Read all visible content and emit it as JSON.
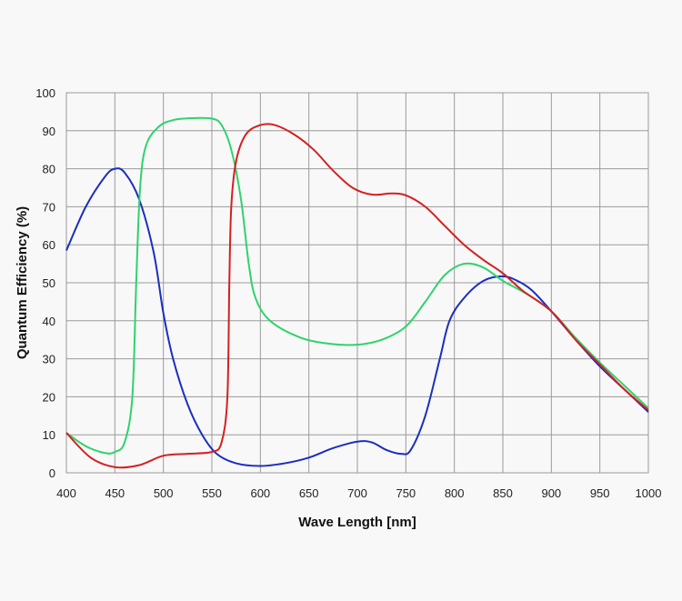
{
  "chart_data": {
    "type": "line",
    "title": "",
    "xlabel": "Wave Length [nm]",
    "ylabel": "Quantum Efficiency  (%)",
    "xlim": [
      400,
      1000
    ],
    "ylim": [
      0,
      100
    ],
    "xticks": [
      400,
      450,
      500,
      550,
      600,
      650,
      700,
      750,
      800,
      850,
      900,
      950,
      1000
    ],
    "yticks": [
      0,
      10,
      20,
      30,
      40,
      50,
      60,
      70,
      80,
      90,
      100
    ],
    "grid": true,
    "legend": "none",
    "series": [
      {
        "color": "#1a2fbf",
        "x": [
          400,
          420,
          440,
          450,
          460,
          475,
          490,
          500,
          510,
          525,
          540,
          555,
          575,
          600,
          625,
          650,
          675,
          700,
          715,
          730,
          745,
          755,
          770,
          785,
          795,
          810,
          830,
          850,
          865,
          880,
          900,
          925,
          950,
          975,
          1000
        ],
        "y": [
          58.5,
          70,
          78,
          80,
          79,
          72,
          58,
          42,
          30,
          18,
          10,
          5,
          2.5,
          1.8,
          2.5,
          4,
          6.5,
          8.2,
          8,
          6,
          5,
          6,
          15,
          30,
          40,
          46,
          50.5,
          51.7,
          50.5,
          48,
          42.5,
          35,
          28,
          22,
          16
        ]
      },
      {
        "color": "#2fd36b",
        "x": [
          400,
          420,
          440,
          450,
          460,
          468,
          472,
          476,
          482,
          495,
          510,
          530,
          550,
          560,
          570,
          580,
          588,
          595,
          610,
          640,
          670,
          700,
          725,
          750,
          770,
          790,
          810,
          830,
          850,
          875,
          900,
          925,
          950,
          975,
          1000
        ],
        "y": [
          10.5,
          7,
          5.2,
          5.5,
          8,
          20,
          50,
          75,
          86,
          91,
          92.8,
          93.3,
          93.2,
          91.5,
          85,
          72,
          55,
          46,
          40,
          35.7,
          34,
          33.7,
          35,
          38.5,
          45,
          52,
          55,
          54,
          50.5,
          47,
          42.5,
          35.5,
          29,
          23,
          17
        ]
      },
      {
        "color": "#d42020",
        "x": [
          400,
          425,
          450,
          475,
          500,
          525,
          550,
          560,
          566,
          568,
          570,
          575,
          585,
          600,
          615,
          635,
          655,
          675,
          695,
          715,
          735,
          750,
          770,
          790,
          810,
          830,
          850,
          870,
          900,
          925,
          950,
          975,
          1000
        ],
        "y": [
          10.5,
          4,
          1.5,
          2,
          4.5,
          5,
          5.5,
          8,
          20,
          50,
          70,
          82,
          89,
          91.5,
          91.5,
          89,
          85,
          79.5,
          75,
          73.2,
          73.5,
          73,
          70,
          65,
          60,
          56,
          52.5,
          48,
          42.5,
          35,
          28.5,
          22,
          16.5
        ]
      }
    ]
  }
}
